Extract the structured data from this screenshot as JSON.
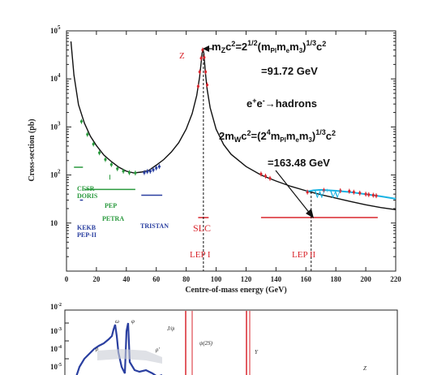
{
  "chart_data": [
    {
      "type": "line",
      "xlabel": "Centre-of-mass energy (GeV)",
      "ylabel": "Cross-section (pb)",
      "xlim": [
        0,
        220
      ],
      "ylim": [
        1,
        100000
      ],
      "ylog": true,
      "x_ticks": [
        0,
        20,
        40,
        60,
        80,
        100,
        120,
        140,
        160,
        180,
        200,
        220
      ],
      "y_ticks": [
        {
          "value": 100000,
          "label": "10",
          "exp": "5"
        },
        {
          "value": 10000,
          "label": "10",
          "exp": "4"
        },
        {
          "value": 1000,
          "label": "10",
          "exp": "3"
        },
        {
          "value": 100,
          "label": "10",
          "exp": "2"
        },
        {
          "value": 10,
          "label": "10",
          "exp": ""
        }
      ],
      "series": [
        {
          "name": "",
          "color": "#111111",
          "x": [
            3,
            5,
            8,
            12,
            16,
            20,
            25,
            30,
            35,
            40,
            45,
            50,
            55,
            60,
            65,
            70,
            75,
            80,
            84,
            87,
            89,
            90,
            90.6,
            91.2,
            91.8,
            92.4,
            93,
            94,
            96,
            100,
            105,
            110,
            120,
            130,
            140,
            150,
            160,
            170,
            180,
            190,
            200,
            210,
            220
          ],
          "y": [
            60000,
            12000,
            2900,
            1200,
            640,
            410,
            260,
            190,
            145,
            120,
            110,
            115,
            125,
            160,
            210,
            300,
            470,
            900,
            1900,
            4500,
            11000,
            22000,
            34000,
            41000,
            34000,
            20000,
            12000,
            6000,
            2500,
            900,
            430,
            270,
            150,
            100,
            75,
            58,
            47,
            39,
            33,
            28,
            24,
            21,
            19
          ]
        },
        {
          "name": "",
          "color": "#19b3e3",
          "x": [
            160,
            165,
            170,
            180,
            190,
            200,
            210,
            220
          ],
          "y": [
            45,
            48,
            49,
            47,
            44,
            40,
            36,
            32
          ]
        }
      ],
      "data_points": [
        {
          "group": "green",
          "color": "#2a9a3e",
          "x": [
            10,
            14,
            18,
            22,
            26,
            30,
            34,
            38,
            42,
            46
          ],
          "y": [
            1300,
            700,
            440,
            290,
            210,
            165,
            135,
            120,
            112,
            110
          ]
        },
        {
          "group": "blue",
          "color": "#2a3fa0",
          "x": [
            52,
            54,
            56,
            58,
            60,
            62
          ],
          "y": [
            112,
            118,
            120,
            128,
            140,
            150
          ]
        },
        {
          "group": "red",
          "color": "#d9262d",
          "x": [
            88,
            89,
            90,
            91,
            92,
            93,
            94,
            130,
            133,
            136,
            161,
            172,
            183,
            189,
            192,
            196,
            200,
            202,
            205,
            207
          ],
          "y": [
            7000,
            14000,
            27000,
            40000,
            28000,
            14000,
            7500,
            105,
            95,
            85,
            44,
            48,
            47,
            46,
            44,
            42,
            40,
            39,
            38,
            37
          ]
        }
      ],
      "annotations": {
        "z": "Z",
        "slc": "SLC",
        "lep1": "LEP I",
        "lep2": "LEP II",
        "ww_main": "W",
        "ww_sup1": "+",
        "ww_sup2": "W",
        "ww_sup3": "-",
        "cesr": "CESR",
        "doris": "DORIS",
        "pep": "PEP",
        "petra": "PETRA",
        "tristan": "TRISTAN",
        "kekb": "KEKB",
        "pep2": "PEP-II",
        "mz_prefix": "m",
        "mz_sub": "Z",
        "mz_c2": "c",
        "mz_eq": "=2",
        "mz_exp": "1/2",
        "mz_paren": "(m",
        "mz_pl": "Pl",
        "mz_m1": "m",
        "mz_e": "e",
        "mz_m2": "m",
        "mz_3": "3",
        "mz_close": ")",
        "mz_exp2": "1/3",
        "mz_end": "c",
        "mz_value": "=91.72 GeV",
        "ee_e": "e",
        "ee_plus": "+",
        "ee_e2": "e",
        "ee_minus": "-",
        "ee_arrow": "→hadrons",
        "mw_prefix": "2m",
        "mw_sub": "W",
        "mw_c2": "c",
        "mw_eq": "=(2",
        "mw_exp": "4",
        "mw_m": "m",
        "mw_pl": "Pl",
        "mw_m1": "m",
        "mw_e": "e",
        "mw_m2": "m",
        "mw_3": "3",
        "mw_close": ")",
        "mw_exp2": "1/3",
        "mw_end": "c",
        "mw_value": "=163.48 GeV"
      },
      "marker_lines_x": [
        91.5,
        163.5
      ],
      "energy_bands": [
        {
          "label_key": "cesr",
          "color": "#2a9a3e",
          "x": [
            5,
            11
          ],
          "y": 145
        },
        {
          "label_key": "pep",
          "color": "#2a9a3e",
          "x": [
            29,
            29
          ],
          "y": 90
        },
        {
          "label_key": "petra",
          "color": "#2a9a3e",
          "x": [
            12,
            46
          ],
          "y": 50
        },
        {
          "label_key": "tristan",
          "color": "#2a3fa0",
          "x": [
            50,
            64
          ],
          "y": 38
        },
        {
          "label_key": "kekb",
          "color": "#2a3fa0",
          "x": [
            9,
            11
          ],
          "y": 30
        },
        {
          "label_key": "lep1",
          "color": "#d9262d",
          "x": [
            88,
            95
          ],
          "y": 13
        },
        {
          "label_key": "lep2",
          "color": "#d9262d",
          "x": [
            130,
            208
          ],
          "y": 13
        }
      ]
    },
    {
      "type": "line",
      "partial": true,
      "xlabel": "",
      "ylabel": "",
      "y_ticks": [
        {
          "label": "10",
          "exp": "-2"
        },
        {
          "label": "10",
          "exp": "-3"
        },
        {
          "label": "10",
          "exp": "-4"
        },
        {
          "label": "10",
          "exp": "-5"
        }
      ],
      "annotations": {
        "omega": "ω",
        "phi": "φ",
        "rho": "ρ",
        "rho2": "ρ'",
        "jpsi": "J/ψ",
        "psi2s": "ψ(2S)",
        "upsilon": "Υ",
        "z": "Z"
      }
    }
  ]
}
